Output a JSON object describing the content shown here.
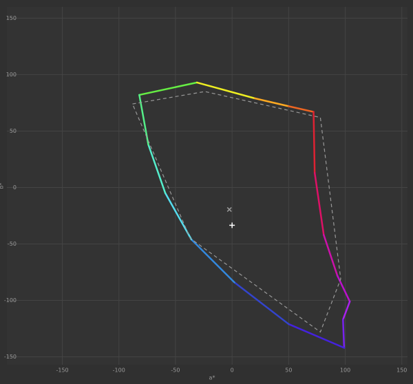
{
  "chart_data": {
    "type": "gamut",
    "x_label": "a*",
    "y_label": "b*",
    "xlim": [
      -199,
      155
    ],
    "ylim": [
      -157,
      160
    ],
    "xticks": [
      -150,
      -100,
      -50,
      0,
      50,
      100,
      150
    ],
    "yticks": [
      -150,
      -100,
      -50,
      0,
      50,
      100,
      150
    ],
    "grid": true,
    "series": [
      {
        "x": [
          -82,
          -31,
          20,
          50,
          72,
          73,
          81,
          93,
          104,
          98,
          99,
          50,
          2,
          -36,
          -59,
          -74,
          -82
        ],
        "y": [
          82,
          93,
          79,
          72,
          67,
          13,
          -42,
          -78,
          -101,
          -117,
          -142,
          -121,
          -84,
          -46,
          -5,
          38,
          82
        ],
        "colors": [
          "#66ee44",
          "#eeee22",
          "#ffaa22",
          "#ee6622",
          "#dd2233",
          "#dd1166",
          "#cc11aa",
          "#bb11cc",
          "#aa22ee",
          "#7722ee",
          "#4422dd",
          "#3344cc",
          "#3388dd",
          "#55ddee",
          "#55eecc",
          "#55ee88",
          "#66ee44"
        ]
      },
      {
        "x": [
          -88,
          -24,
          78,
          96,
          78,
          -37,
          -88
        ],
        "y": [
          74,
          85,
          62,
          -81,
          -128,
          -45,
          74
        ],
        "color": "#999999",
        "dashed": true
      }
    ],
    "markers": [
      {
        "symbol": "x",
        "x": -2.4,
        "y": -19.5,
        "color": "#999999"
      },
      {
        "symbol": "+",
        "x": 0,
        "y": -33.5,
        "color": "#ffffff"
      }
    ]
  }
}
